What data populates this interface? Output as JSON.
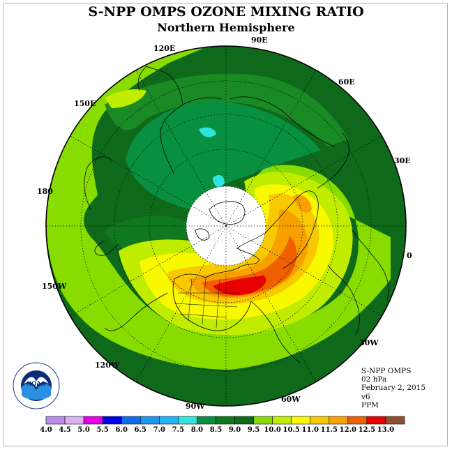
{
  "header": {
    "title": "S-NPP OMPS OZONE MIXING RATIO",
    "subtitle": "Northern Hemisphere"
  },
  "map": {
    "projection": "north-polar-stereographic",
    "longitude_labels": [
      "90E",
      "60E",
      "30E",
      "0",
      "30W",
      "60W",
      "90W",
      "120W",
      "150W",
      "180",
      "150E",
      "120E"
    ],
    "polar_data_gap": true
  },
  "info": {
    "instrument": "S-NPP OMPS",
    "pressure": "02 hPa",
    "date": "February 2, 2015",
    "version": "v6",
    "units": "PPM"
  },
  "logo": {
    "label": "NOAA",
    "icon": "noaa-logo-icon"
  },
  "colorbar": {
    "ticks": [
      "4.0",
      "4.5",
      "5.0",
      "5.5",
      "6.0",
      "6.5",
      "7.0",
      "7.5",
      "8.0",
      "8.5",
      "9.0",
      "9.5",
      "10.0",
      "10.5",
      "11.0",
      "11.5",
      "12.0",
      "12.5",
      "13.0"
    ],
    "colors": [
      "#b98ee8",
      "#dcb0f0",
      "#e800e8",
      "#0000e8",
      "#0c6cec",
      "#1896f0",
      "#20b4f4",
      "#30e4e0",
      "#089040",
      "#10781e",
      "#0e6a1a",
      "#88dc00",
      "#c0ec00",
      "#f8f800",
      "#f8c800",
      "#f8a000",
      "#f06000",
      "#e80000",
      "#905030"
    ]
  }
}
